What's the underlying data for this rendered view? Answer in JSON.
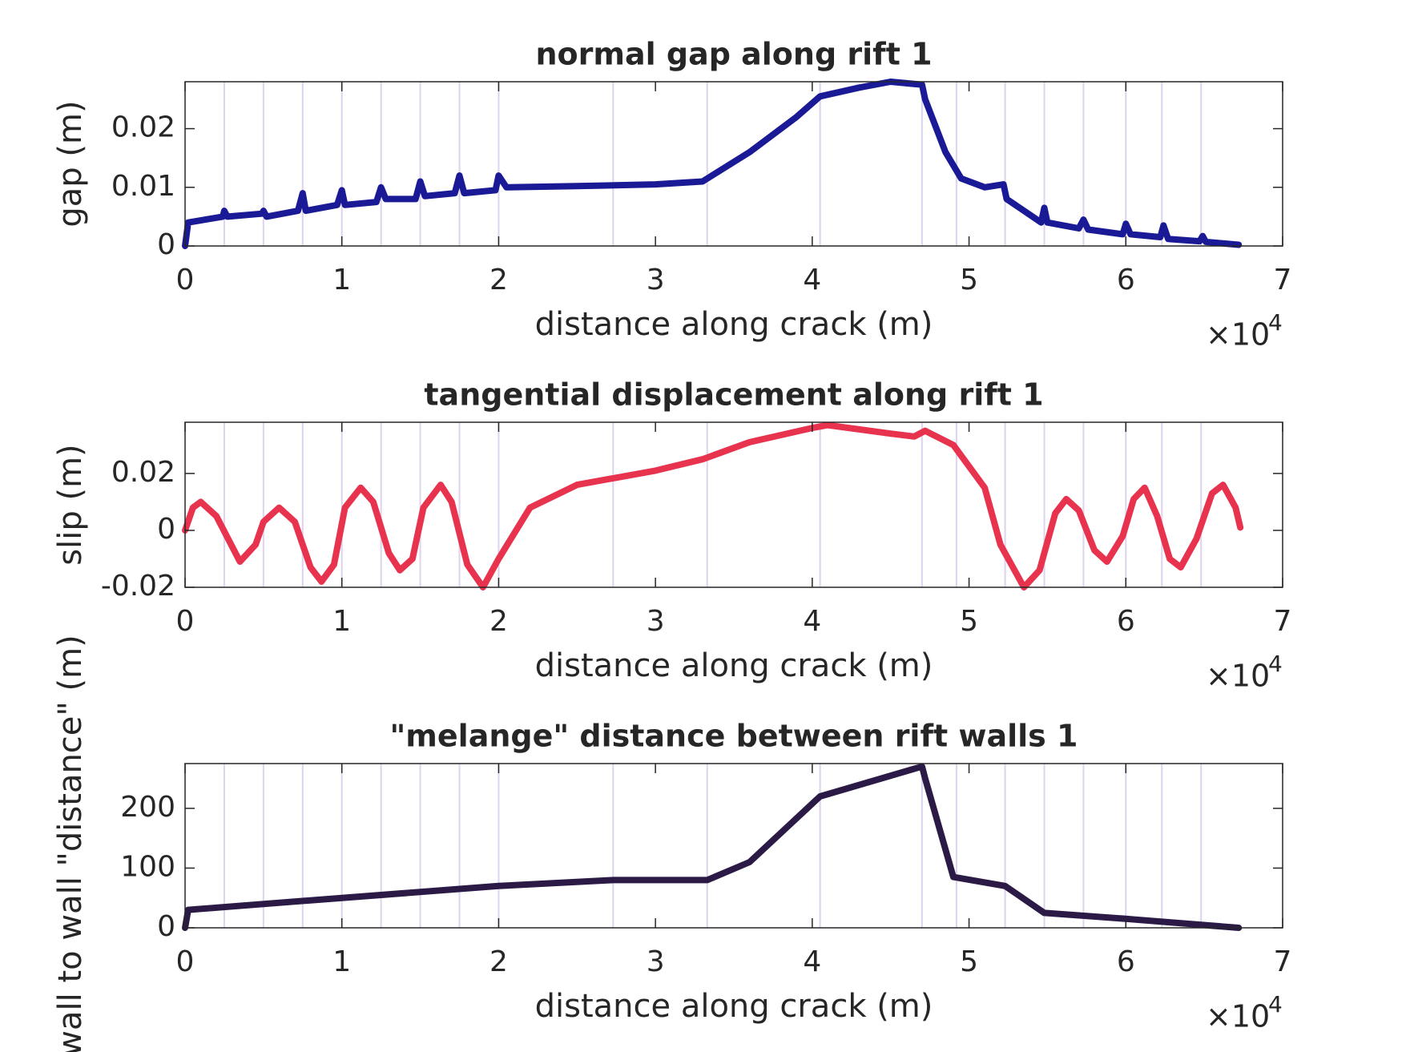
{
  "chart_data": [
    {
      "type": "line",
      "title": "normal gap along rift 1",
      "xlabel": "distance along crack (m)",
      "ylabel": "gap (m)",
      "x_scale_label": "×10",
      "x_scale_exponent": "4",
      "xlim": [
        0,
        7
      ],
      "xticks": [
        0,
        1,
        2,
        3,
        4,
        5,
        6,
        7
      ],
      "ylim": [
        0,
        0.028
      ],
      "yticks": [
        0,
        0.01,
        0.02
      ],
      "vlines": [
        0.25,
        0.5,
        0.75,
        1.0,
        1.25,
        1.5,
        1.75,
        2.0,
        2.73,
        3.33,
        4.05,
        4.7,
        4.92,
        5.23,
        5.48,
        5.73,
        6.0,
        6.23,
        6.48
      ],
      "vline_color": "#ddd3ee",
      "series": [
        {
          "color": "#1a1a96",
          "x": [
            0,
            0.02,
            0.24,
            0.25,
            0.27,
            0.49,
            0.5,
            0.52,
            0.72,
            0.75,
            0.77,
            0.97,
            1.0,
            1.02,
            1.22,
            1.25,
            1.28,
            1.47,
            1.5,
            1.53,
            1.72,
            1.75,
            1.78,
            1.98,
            2.0,
            2.05,
            2.5,
            3.0,
            3.3,
            3.6,
            3.9,
            4.05,
            4.3,
            4.5,
            4.7,
            4.72,
            4.85,
            4.95,
            5.1,
            5.22,
            5.24,
            5.35,
            5.46,
            5.48,
            5.5,
            5.7,
            5.73,
            5.76,
            5.98,
            6.0,
            6.03,
            6.22,
            6.24,
            6.27,
            6.47,
            6.49,
            6.51,
            6.72
          ],
          "values": [
            0,
            0.004,
            0.005,
            0.006,
            0.005,
            0.0055,
            0.006,
            0.005,
            0.006,
            0.009,
            0.006,
            0.007,
            0.0095,
            0.007,
            0.0075,
            0.01,
            0.008,
            0.008,
            0.011,
            0.0085,
            0.009,
            0.012,
            0.009,
            0.0095,
            0.012,
            0.01,
            0.0102,
            0.0105,
            0.011,
            0.016,
            0.022,
            0.0255,
            0.027,
            0.028,
            0.0275,
            0.025,
            0.016,
            0.0115,
            0.01,
            0.0105,
            0.008,
            0.006,
            0.004,
            0.0065,
            0.004,
            0.003,
            0.0045,
            0.0028,
            0.002,
            0.0038,
            0.002,
            0.0015,
            0.0035,
            0.0012,
            0.0008,
            0.0017,
            0.0007,
            0.0002
          ]
        }
      ]
    },
    {
      "type": "line",
      "title": "tangential displacement along rift 1",
      "xlabel": "distance along crack (m)",
      "ylabel": "slip (m)",
      "x_scale_label": "×10",
      "x_scale_exponent": "4",
      "xlim": [
        0,
        7
      ],
      "xticks": [
        0,
        1,
        2,
        3,
        4,
        5,
        6,
        7
      ],
      "ylim": [
        -0.02,
        0.038
      ],
      "yticks": [
        -0.02,
        0,
        0.02
      ],
      "vlines": [
        0.25,
        0.5,
        0.75,
        1.0,
        1.25,
        1.5,
        1.75,
        2.0,
        2.73,
        3.33,
        4.05,
        4.7,
        4.92,
        5.23,
        5.48,
        5.73,
        6.0,
        6.23,
        6.48
      ],
      "vline_color": "#ddd3ee",
      "series": [
        {
          "color": "#e8334f",
          "x": [
            0,
            0.05,
            0.1,
            0.2,
            0.35,
            0.45,
            0.5,
            0.6,
            0.7,
            0.8,
            0.87,
            0.95,
            1.02,
            1.12,
            1.2,
            1.3,
            1.37,
            1.45,
            1.52,
            1.63,
            1.7,
            1.8,
            1.9,
            2.0,
            2.2,
            2.5,
            3.0,
            3.3,
            3.6,
            4.0,
            4.1,
            4.5,
            4.65,
            4.72,
            4.9,
            5.1,
            5.2,
            5.35,
            5.45,
            5.55,
            5.62,
            5.7,
            5.8,
            5.88,
            5.98,
            6.05,
            6.12,
            6.2,
            6.28,
            6.35,
            6.45,
            6.55,
            6.62,
            6.7,
            6.73
          ],
          "values": [
            0,
            0.008,
            0.01,
            0.005,
            -0.011,
            -0.005,
            0.003,
            0.008,
            0.003,
            -0.013,
            -0.018,
            -0.012,
            0.008,
            0.015,
            0.01,
            -0.008,
            -0.014,
            -0.01,
            0.008,
            0.016,
            0.01,
            -0.012,
            -0.02,
            -0.01,
            0.008,
            0.016,
            0.021,
            0.025,
            0.031,
            0.036,
            0.037,
            0.034,
            0.033,
            0.035,
            0.03,
            0.015,
            -0.005,
            -0.02,
            -0.014,
            0.006,
            0.011,
            0.007,
            -0.007,
            -0.011,
            -0.002,
            0.011,
            0.015,
            0.005,
            -0.01,
            -0.013,
            -0.003,
            0.013,
            0.016,
            0.008,
            0.001
          ]
        }
      ]
    },
    {
      "type": "line",
      "title": "\"melange\" distance between rift walls 1",
      "xlabel": "distance along crack (m)",
      "ylabel": "wall to wall \"distance\" (m)",
      "x_scale_label": "×10",
      "x_scale_exponent": "4",
      "xlim": [
        0,
        7
      ],
      "xticks": [
        0,
        1,
        2,
        3,
        4,
        5,
        6,
        7
      ],
      "ylim": [
        0,
        275
      ],
      "yticks": [
        0,
        100,
        200
      ],
      "vlines": [
        0.25,
        0.5,
        0.75,
        1.0,
        1.25,
        1.5,
        1.75,
        2.0,
        2.73,
        3.33,
        4.05,
        4.7,
        4.92,
        5.23,
        5.48,
        5.73,
        6.0,
        6.23,
        6.48
      ],
      "vline_color": "#ddd3ee",
      "series": [
        {
          "color": "#2b1a45",
          "x": [
            0,
            0.02,
            1,
            2,
            2.73,
            3.33,
            3.6,
            4.05,
            4.7,
            4.72,
            4.9,
            5.23,
            5.48,
            6.0,
            6.72
          ],
          "values": [
            0,
            30,
            50,
            70,
            80,
            80,
            110,
            220,
            270,
            250,
            85,
            70,
            25,
            15,
            0
          ]
        }
      ]
    }
  ]
}
